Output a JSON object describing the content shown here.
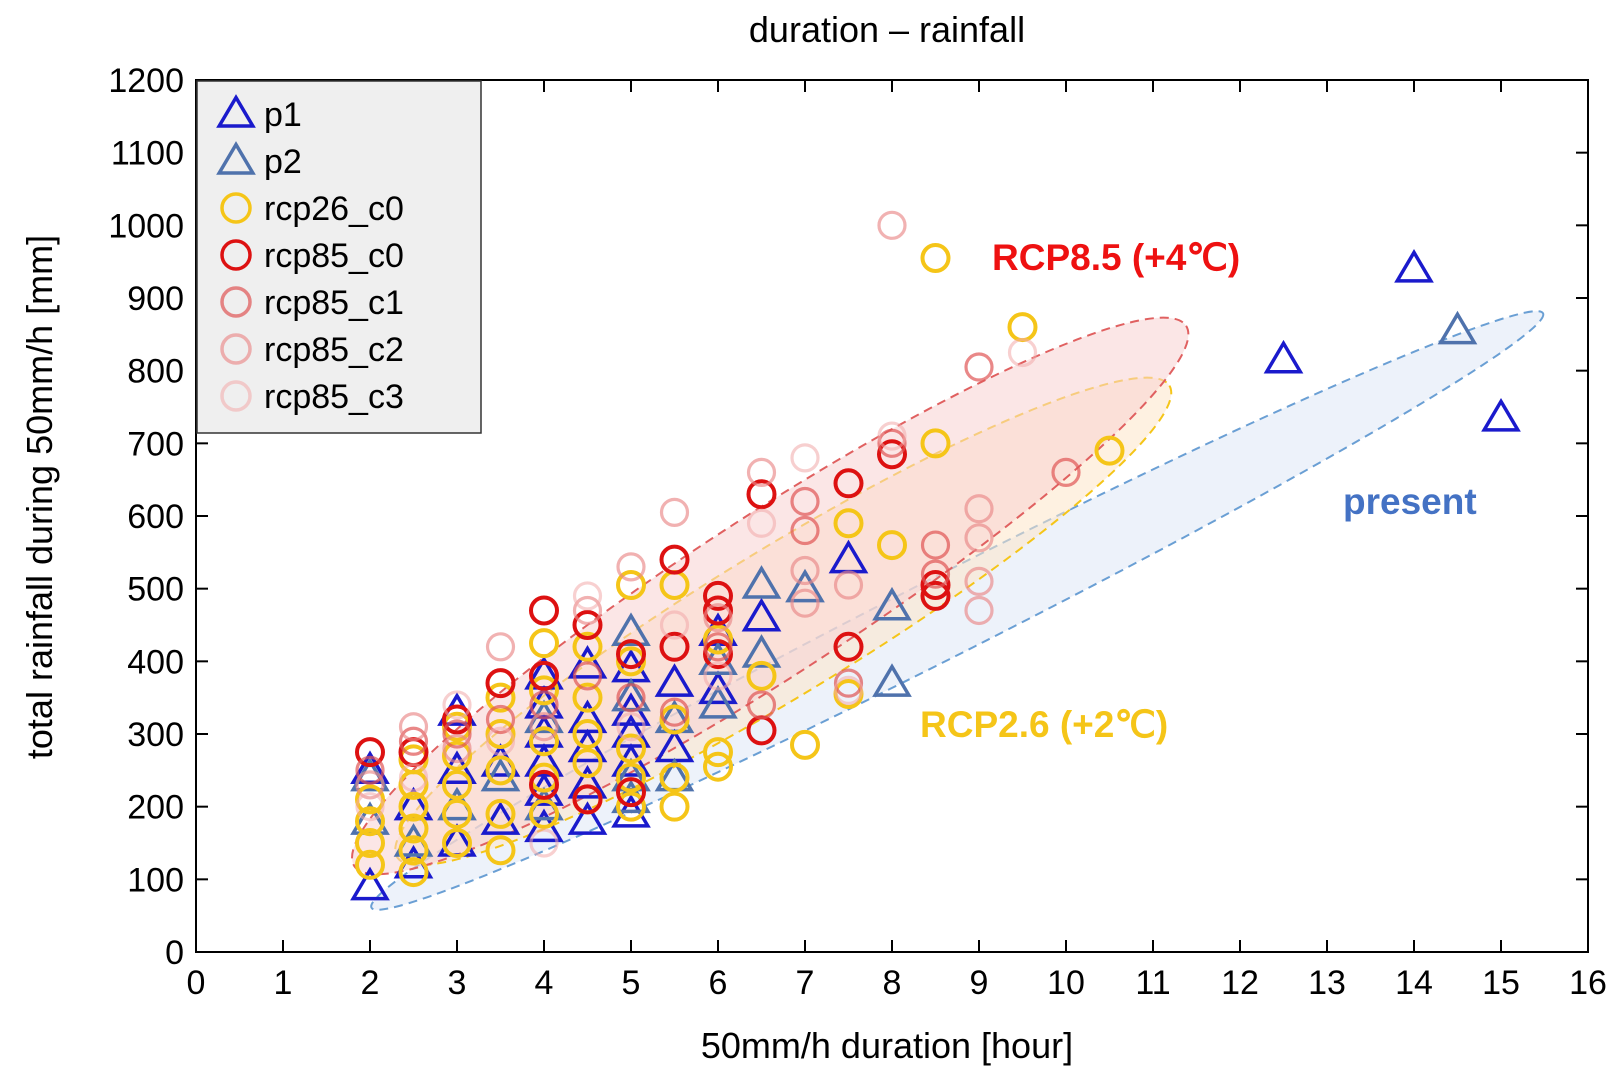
{
  "chart_data": {
    "type": "scatter",
    "title": "duration – rainfall",
    "xlabel": "50mm/h duration [hour]",
    "ylabel": "total rainfall during 50mm/h [mm]",
    "xlim": [
      0,
      16
    ],
    "ylim": [
      0,
      1200
    ],
    "xticks": [
      0,
      1,
      2,
      3,
      4,
      5,
      6,
      7,
      8,
      9,
      10,
      11,
      12,
      13,
      14,
      15,
      16
    ],
    "yticks": [
      0,
      100,
      200,
      300,
      400,
      500,
      600,
      700,
      800,
      900,
      1000,
      1100,
      1200
    ],
    "grid": false,
    "legend_position": "top-left",
    "series": [
      {
        "name": "p1",
        "marker": "triangle",
        "color": "#1a1acc",
        "opacity": 1.0,
        "points": [
          [
            2,
            90
          ],
          [
            2,
            250
          ],
          [
            2.5,
            120
          ],
          [
            2.5,
            200
          ],
          [
            3,
            330
          ],
          [
            3,
            150
          ],
          [
            3,
            250
          ],
          [
            3.5,
            180
          ],
          [
            3.5,
            260
          ],
          [
            4,
            170
          ],
          [
            4,
            220
          ],
          [
            4,
            260
          ],
          [
            4,
            300
          ],
          [
            4,
            340
          ],
          [
            4,
            380
          ],
          [
            4.5,
            180
          ],
          [
            4.5,
            230
          ],
          [
            4.5,
            280
          ],
          [
            4.5,
            320
          ],
          [
            4.5,
            395
          ],
          [
            5,
            190
          ],
          [
            5,
            260
          ],
          [
            5,
            300
          ],
          [
            5,
            330
          ],
          [
            5,
            390
          ],
          [
            5.5,
            280
          ],
          [
            5.5,
            370
          ],
          [
            6,
            360
          ],
          [
            6,
            440
          ],
          [
            6.5,
            460
          ],
          [
            7.5,
            540
          ],
          [
            12.5,
            815
          ],
          [
            14,
            940
          ],
          [
            15,
            735
          ]
        ]
      },
      {
        "name": "p2",
        "marker": "triangle",
        "color": "#4f72ac",
        "opacity": 1.0,
        "points": [
          [
            2,
            180
          ],
          [
            2,
            240
          ],
          [
            2.5,
            150
          ],
          [
            3,
            200
          ],
          [
            3.5,
            240
          ],
          [
            4,
            200
          ],
          [
            4,
            320
          ],
          [
            5,
            210
          ],
          [
            5,
            240
          ],
          [
            5,
            350
          ],
          [
            5,
            440
          ],
          [
            5.5,
            240
          ],
          [
            5.5,
            320
          ],
          [
            6,
            340
          ],
          [
            6,
            400
          ],
          [
            6.5,
            410
          ],
          [
            6.5,
            505
          ],
          [
            7,
            500
          ],
          [
            8,
            370
          ],
          [
            8,
            475
          ],
          [
            14.5,
            855
          ]
        ]
      },
      {
        "name": "rcp26_c0",
        "marker": "circle",
        "color": "#f5c518",
        "opacity": 1.0,
        "points": [
          [
            2,
            120
          ],
          [
            2,
            150
          ],
          [
            2,
            180
          ],
          [
            2,
            210
          ],
          [
            2.5,
            110
          ],
          [
            2.5,
            140
          ],
          [
            2.5,
            170
          ],
          [
            2.5,
            200
          ],
          [
            2.5,
            230
          ],
          [
            2.5,
            265
          ],
          [
            3,
            150
          ],
          [
            3,
            190
          ],
          [
            3,
            230
          ],
          [
            3,
            270
          ],
          [
            3,
            310
          ],
          [
            3.5,
            140
          ],
          [
            3.5,
            190
          ],
          [
            3.5,
            250
          ],
          [
            3.5,
            300
          ],
          [
            3.5,
            350
          ],
          [
            4,
            190
          ],
          [
            4,
            240
          ],
          [
            4,
            290
          ],
          [
            4,
            360
          ],
          [
            4,
            425
          ],
          [
            4.5,
            210
          ],
          [
            4.5,
            260
          ],
          [
            4.5,
            300
          ],
          [
            4.5,
            350
          ],
          [
            4.5,
            420
          ],
          [
            5,
            200
          ],
          [
            5,
            240
          ],
          [
            5,
            280
          ],
          [
            5,
            400
          ],
          [
            5,
            505
          ],
          [
            5.5,
            200
          ],
          [
            5.5,
            240
          ],
          [
            5.5,
            320
          ],
          [
            5.5,
            505
          ],
          [
            6,
            255
          ],
          [
            6,
            275
          ],
          [
            6,
            430
          ],
          [
            6.5,
            380
          ],
          [
            7,
            285
          ],
          [
            7.5,
            355
          ],
          [
            7.5,
            590
          ],
          [
            8,
            560
          ],
          [
            8.5,
            700
          ],
          [
            8.5,
            955
          ],
          [
            9.5,
            860
          ],
          [
            10.5,
            690
          ]
        ]
      },
      {
        "name": "rcp85_c0",
        "marker": "circle",
        "color": "#dd1111",
        "opacity": 1.0,
        "points": [
          [
            2,
            275
          ],
          [
            2.5,
            275
          ],
          [
            3,
            320
          ],
          [
            3.5,
            370
          ],
          [
            4,
            230
          ],
          [
            4,
            380
          ],
          [
            4,
            470
          ],
          [
            4.5,
            210
          ],
          [
            4.5,
            450
          ],
          [
            5,
            220
          ],
          [
            5,
            410
          ],
          [
            5.5,
            420
          ],
          [
            5.5,
            540
          ],
          [
            6,
            410
          ],
          [
            6,
            470
          ],
          [
            6,
            490
          ],
          [
            6.5,
            305
          ],
          [
            6.5,
            630
          ],
          [
            7.5,
            420
          ],
          [
            7.5,
            645
          ],
          [
            8,
            685
          ],
          [
            8.5,
            490
          ],
          [
            8.5,
            505
          ]
        ]
      },
      {
        "name": "rcp85_c1",
        "marker": "circle",
        "color": "#e05555",
        "opacity": 0.7,
        "points": [
          [
            2,
            250
          ],
          [
            2.5,
            290
          ],
          [
            3,
            300
          ],
          [
            3.5,
            320
          ],
          [
            4,
            340
          ],
          [
            4.5,
            380
          ],
          [
            5,
            350
          ],
          [
            5.5,
            330
          ],
          [
            6,
            420
          ],
          [
            6.5,
            340
          ],
          [
            7,
            580
          ],
          [
            7,
            620
          ],
          [
            7.5,
            370
          ],
          [
            8,
            700
          ],
          [
            8.5,
            560
          ],
          [
            8.5,
            520
          ],
          [
            9,
            805
          ],
          [
            10,
            660
          ]
        ]
      },
      {
        "name": "rcp85_c2",
        "marker": "circle",
        "color": "#ea8888",
        "opacity": 0.65,
        "points": [
          [
            2,
            230
          ],
          [
            2.5,
            310
          ],
          [
            3,
            280
          ],
          [
            3.5,
            420
          ],
          [
            4,
            310
          ],
          [
            4.5,
            470
          ],
          [
            5,
            530
          ],
          [
            5.5,
            605
          ],
          [
            6,
            460
          ],
          [
            6.5,
            660
          ],
          [
            7,
            480
          ],
          [
            7,
            525
          ],
          [
            7.5,
            505
          ],
          [
            8,
            1000
          ],
          [
            9,
            470
          ],
          [
            9,
            510
          ],
          [
            9,
            570
          ],
          [
            9,
            610
          ]
        ]
      },
      {
        "name": "rcp85_c3",
        "marker": "circle",
        "color": "#f2a9a9",
        "opacity": 0.55,
        "points": [
          [
            2,
            200
          ],
          [
            2.5,
            240
          ],
          [
            3,
            340
          ],
          [
            3.5,
            290
          ],
          [
            4,
            150
          ],
          [
            4.5,
            490
          ],
          [
            5,
            310
          ],
          [
            5.5,
            450
          ],
          [
            6,
            380
          ],
          [
            6.5,
            590
          ],
          [
            7,
            680
          ],
          [
            7.5,
            360
          ],
          [
            8,
            710
          ],
          [
            9.5,
            825
          ]
        ]
      }
    ],
    "annotations": [
      {
        "text": "RCP8.5 (+4℃)",
        "color": "#ee1111"
      },
      {
        "text": "RCP2.6 (+2℃)",
        "color": "#f5c518"
      },
      {
        "text": "present",
        "color": "#4472c4"
      }
    ],
    "ellipses": [
      {
        "group": "present",
        "stroke": "#6a9fd4",
        "fill": "#dfe8f6",
        "center": [
          8.75,
          470
        ],
        "rx_data": 7.55,
        "ry_data": 55,
        "angle_deg": -26.9
      },
      {
        "group": "RCP2.6",
        "stroke": "#f5c518",
        "fill": "#fde6c8",
        "center": [
          6.75,
          455
        ],
        "rx_data": 5.2,
        "ry_data": 100,
        "angle_deg": -31.4
      },
      {
        "group": "RCP8.5",
        "stroke": "#e06060",
        "fill": "#f8d2d2",
        "center": [
          6.6,
          490
        ],
        "rx_data": 5.7,
        "ry_data": 110,
        "angle_deg": -33.0
      }
    ]
  }
}
